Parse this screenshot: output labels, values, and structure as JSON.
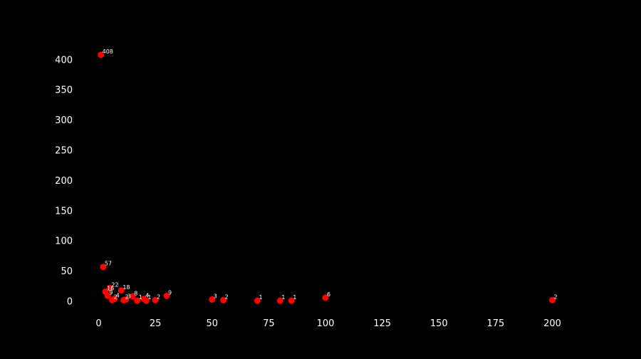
{
  "chart_data": {
    "type": "scatter",
    "title": "",
    "xlabel": "",
    "ylabel": "",
    "xlim": [
      -8,
      208
    ],
    "ylim": [
      -20,
      428
    ],
    "x_ticks": [
      0,
      25,
      50,
      75,
      100,
      125,
      150,
      175,
      200
    ],
    "y_ticks": [
      0,
      50,
      100,
      150,
      200,
      250,
      300,
      350,
      400
    ],
    "x_tick_labels": [
      "0",
      "25",
      "50",
      "75",
      "100",
      "125",
      "150",
      "175",
      "200"
    ],
    "y_tick_labels": [
      "0",
      "50",
      "100",
      "150",
      "200",
      "250",
      "300",
      "350",
      "400"
    ],
    "grid": false,
    "colors": {
      "background": "#000000",
      "marker": "#ff0000",
      "text": "#ffffff"
    },
    "points": [
      {
        "x": 1,
        "y": 408,
        "label": "408"
      },
      {
        "x": 2,
        "y": 57,
        "label": "57"
      },
      {
        "x": 3,
        "y": 16,
        "label": "16"
      },
      {
        "x": 4,
        "y": 9,
        "label": "9"
      },
      {
        "x": 5,
        "y": 22,
        "label": "22"
      },
      {
        "x": 6,
        "y": 2,
        "label": "2"
      },
      {
        "x": 7,
        "y": 4,
        "label": "4"
      },
      {
        "x": 10,
        "y": 18,
        "label": "18"
      },
      {
        "x": 11,
        "y": 2,
        "label": "2"
      },
      {
        "x": 12,
        "y": 3,
        "label": "3"
      },
      {
        "x": 15,
        "y": 8,
        "label": "8"
      },
      {
        "x": 17,
        "y": 1,
        "label": "1"
      },
      {
        "x": 20,
        "y": 4,
        "label": "4"
      },
      {
        "x": 21,
        "y": 1,
        "label": "1"
      },
      {
        "x": 25,
        "y": 2,
        "label": "2"
      },
      {
        "x": 30,
        "y": 9,
        "label": "9"
      },
      {
        "x": 50,
        "y": 3,
        "label": "3"
      },
      {
        "x": 55,
        "y": 2,
        "label": "2"
      },
      {
        "x": 70,
        "y": 1,
        "label": "1"
      },
      {
        "x": 80,
        "y": 1,
        "label": "1"
      },
      {
        "x": 85,
        "y": 1,
        "label": "1"
      },
      {
        "x": 100,
        "y": 6,
        "label": "6"
      },
      {
        "x": 200,
        "y": 2,
        "label": "2"
      }
    ]
  }
}
